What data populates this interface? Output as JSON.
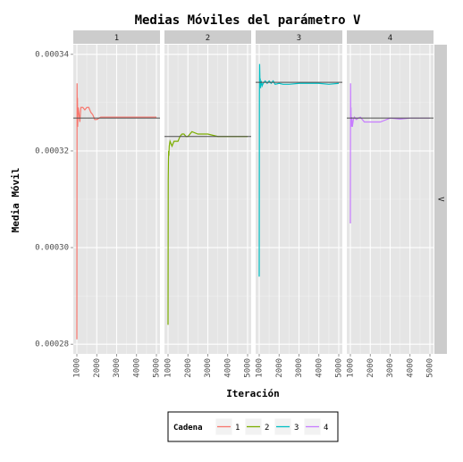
{
  "chart_data": {
    "type": "line",
    "title": "Medias Móviles del parámetro V",
    "xlabel": "Iteración",
    "ylabel": "Media Móvil",
    "facet_strip_right": "V",
    "xlim": [
      1000,
      5000
    ],
    "x_ticks": [
      1000,
      2000,
      3000,
      4000,
      5000
    ],
    "x_tick_labels": [
      "1000",
      "2000",
      "3000",
      "4000",
      "5000"
    ],
    "ylim": [
      0.000278,
      0.000342
    ],
    "y_ticks": [
      0.00028,
      0.0003,
      0.00032,
      0.00034
    ],
    "y_tick_labels": [
      "0.00028",
      "0.00030",
      "0.00032",
      "0.00034"
    ],
    "grid": true,
    "legend": {
      "position": "bottom",
      "title": "Cadena",
      "entries": [
        "1",
        "2",
        "3",
        "4"
      ]
    },
    "reference_color": "#4d4d4d",
    "panels": [
      {
        "strip": "1",
        "color": "#F8766D",
        "reference_y": 0.0003268,
        "x": [
          1000,
          1010,
          1020,
          1030,
          1040,
          1050,
          1070,
          1100,
          1150,
          1200,
          1300,
          1400,
          1500,
          1600,
          1700,
          1800,
          1900,
          2000,
          2200,
          2500,
          3000,
          3500,
          4000,
          4500,
          5000
        ],
        "y": [
          0.000281,
          0.000334,
          0.000326,
          0.000331,
          0.000325,
          0.000327,
          0.000329,
          0.000328,
          0.000326,
          0.000329,
          0.000329,
          0.0003285,
          0.000329,
          0.000329,
          0.000328,
          0.0003275,
          0.0003265,
          0.0003265,
          0.000327,
          0.000327,
          0.000327,
          0.000327,
          0.000327,
          0.000327,
          0.000327
        ]
      },
      {
        "strip": "2",
        "color": "#7CAE00",
        "reference_y": 0.000323,
        "x": [
          1000,
          1010,
          1020,
          1030,
          1040,
          1060,
          1100,
          1200,
          1300,
          1400,
          1500,
          1600,
          1700,
          1800,
          1900,
          2000,
          2200,
          2500,
          3000,
          3500,
          4000,
          4500,
          5000
        ],
        "y": [
          0.000284,
          0.000314,
          0.000318,
          0.00032,
          0.000319,
          0.000321,
          0.000322,
          0.000321,
          0.000322,
          0.000322,
          0.000322,
          0.000323,
          0.0003235,
          0.0003235,
          0.000323,
          0.000323,
          0.000324,
          0.0003235,
          0.0003235,
          0.000323,
          0.000323,
          0.000323,
          0.000323
        ]
      },
      {
        "strip": "3",
        "color": "#00BFC4",
        "reference_y": 0.0003342,
        "x": [
          1000,
          1010,
          1020,
          1030,
          1040,
          1050,
          1070,
          1100,
          1150,
          1200,
          1300,
          1400,
          1500,
          1600,
          1700,
          1800,
          2000,
          2200,
          2500,
          3000,
          3500,
          4000,
          4500,
          5000
        ],
        "y": [
          0.000294,
          0.000331,
          0.000338,
          0.000336,
          0.000334,
          0.000335,
          0.000333,
          0.0003345,
          0.0003335,
          0.000334,
          0.0003345,
          0.000334,
          0.0003345,
          0.000334,
          0.0003345,
          0.0003338,
          0.000334,
          0.0003338,
          0.0003338,
          0.000334,
          0.000334,
          0.000334,
          0.0003338,
          0.000334
        ]
      },
      {
        "strip": "4",
        "color": "#C77CFF",
        "reference_y": 0.0003268,
        "x": [
          1000,
          1010,
          1020,
          1030,
          1040,
          1050,
          1070,
          1100,
          1150,
          1200,
          1300,
          1400,
          1500,
          1600,
          1700,
          1800,
          2000,
          2200,
          2500,
          3000,
          3500,
          4000,
          4500,
          5000
        ],
        "y": [
          0.000305,
          0.000334,
          0.000326,
          0.000329,
          0.000325,
          0.000326,
          0.000327,
          0.000325,
          0.0003265,
          0.000327,
          0.0003265,
          0.0003268,
          0.000327,
          0.0003265,
          0.000326,
          0.000326,
          0.000326,
          0.000326,
          0.000326,
          0.0003268,
          0.0003266,
          0.0003268,
          0.0003268,
          0.0003268
        ]
      }
    ]
  }
}
